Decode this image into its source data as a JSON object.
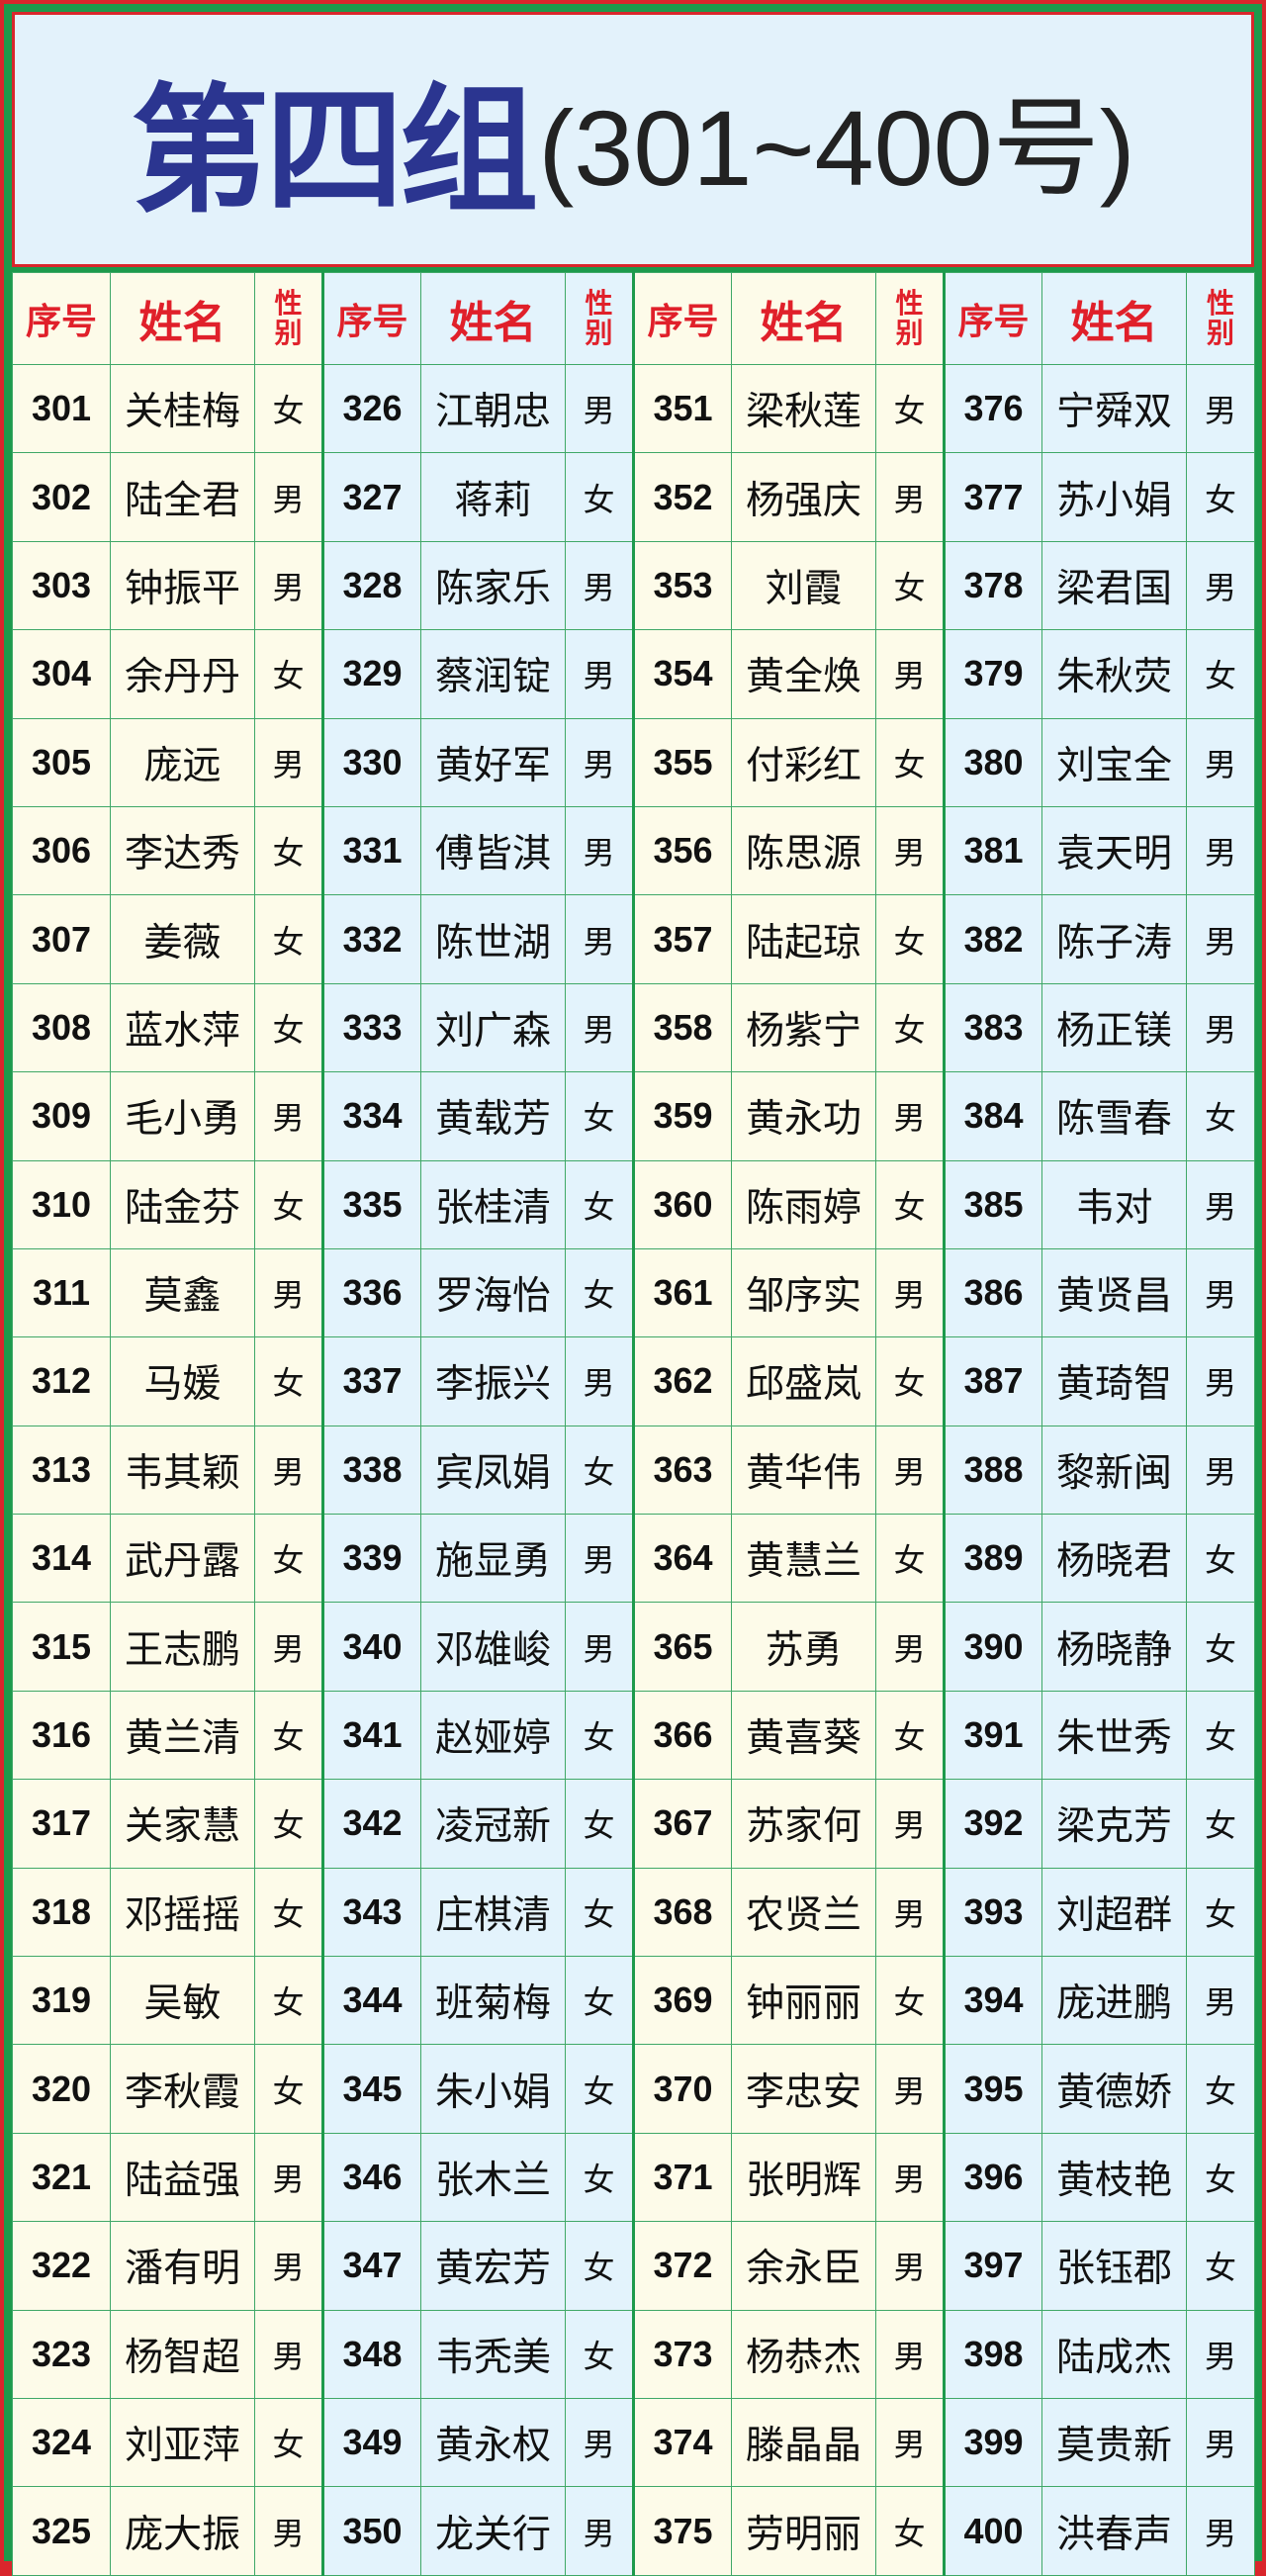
{
  "title": {
    "main": "第四组",
    "sub": "(301~400号)"
  },
  "colors": {
    "title_blue": "#2b3590",
    "header_red": "#e0202a",
    "grid_green": "#3fa867",
    "frame_red": "#d9262c",
    "cream": "#fdfbe9",
    "light_blue": "#e3f3fc"
  },
  "headers": {
    "seq": "序号",
    "name": "姓名",
    "sex_1": "性",
    "sex_2": "别"
  },
  "groups": [
    [
      [
        "301",
        "关桂梅",
        "女"
      ],
      [
        "302",
        "陆全君",
        "男"
      ],
      [
        "303",
        "钟振平",
        "男"
      ],
      [
        "304",
        "余丹丹",
        "女"
      ],
      [
        "305",
        "庞远",
        "男"
      ],
      [
        "306",
        "李达秀",
        "女"
      ],
      [
        "307",
        "姜薇",
        "女"
      ],
      [
        "308",
        "蓝水萍",
        "女"
      ],
      [
        "309",
        "毛小勇",
        "男"
      ],
      [
        "310",
        "陆金芬",
        "女"
      ],
      [
        "311",
        "莫鑫",
        "男"
      ],
      [
        "312",
        "马媛",
        "女"
      ],
      [
        "313",
        "韦其颖",
        "男"
      ],
      [
        "314",
        "武丹露",
        "女"
      ],
      [
        "315",
        "王志鹏",
        "男"
      ],
      [
        "316",
        "黄兰清",
        "女"
      ],
      [
        "317",
        "关家慧",
        "女"
      ],
      [
        "318",
        "邓摇摇",
        "女"
      ],
      [
        "319",
        "吴敏",
        "女"
      ],
      [
        "320",
        "李秋霞",
        "女"
      ],
      [
        "321",
        "陆益强",
        "男"
      ],
      [
        "322",
        "潘有明",
        "男"
      ],
      [
        "323",
        "杨智超",
        "男"
      ],
      [
        "324",
        "刘亚萍",
        "女"
      ],
      [
        "325",
        "庞大振",
        "男"
      ]
    ],
    [
      [
        "326",
        "江朝忠",
        "男"
      ],
      [
        "327",
        "蒋莉",
        "女"
      ],
      [
        "328",
        "陈家乐",
        "男"
      ],
      [
        "329",
        "蔡润锭",
        "男"
      ],
      [
        "330",
        "黄好军",
        "男"
      ],
      [
        "331",
        "傅皆淇",
        "男"
      ],
      [
        "332",
        "陈世湖",
        "男"
      ],
      [
        "333",
        "刘广森",
        "男"
      ],
      [
        "334",
        "黄载芳",
        "女"
      ],
      [
        "335",
        "张桂清",
        "女"
      ],
      [
        "336",
        "罗海怡",
        "女"
      ],
      [
        "337",
        "李振兴",
        "男"
      ],
      [
        "338",
        "宾凤娟",
        "女"
      ],
      [
        "339",
        "施显勇",
        "男"
      ],
      [
        "340",
        "邓雄峻",
        "男"
      ],
      [
        "341",
        "赵娅婷",
        "女"
      ],
      [
        "342",
        "凌冠新",
        "女"
      ],
      [
        "343",
        "庄棋清",
        "女"
      ],
      [
        "344",
        "班菊梅",
        "女"
      ],
      [
        "345",
        "朱小娟",
        "女"
      ],
      [
        "346",
        "张木兰",
        "女"
      ],
      [
        "347",
        "黄宏芳",
        "女"
      ],
      [
        "348",
        "韦秃美",
        "女"
      ],
      [
        "349",
        "黄永权",
        "男"
      ],
      [
        "350",
        "龙关行",
        "男"
      ]
    ],
    [
      [
        "351",
        "梁秋莲",
        "女"
      ],
      [
        "352",
        "杨强庆",
        "男"
      ],
      [
        "353",
        "刘霞",
        "女"
      ],
      [
        "354",
        "黄全焕",
        "男"
      ],
      [
        "355",
        "付彩红",
        "女"
      ],
      [
        "356",
        "陈思源",
        "男"
      ],
      [
        "357",
        "陆起琼",
        "女"
      ],
      [
        "358",
        "杨紫宁",
        "女"
      ],
      [
        "359",
        "黄永功",
        "男"
      ],
      [
        "360",
        "陈雨婷",
        "女"
      ],
      [
        "361",
        "邹序实",
        "男"
      ],
      [
        "362",
        "邱盛岚",
        "女"
      ],
      [
        "363",
        "黄华伟",
        "男"
      ],
      [
        "364",
        "黄慧兰",
        "女"
      ],
      [
        "365",
        "苏勇",
        "男"
      ],
      [
        "366",
        "黄喜葵",
        "女"
      ],
      [
        "367",
        "苏家何",
        "男"
      ],
      [
        "368",
        "农贤兰",
        "男"
      ],
      [
        "369",
        "钟丽丽",
        "女"
      ],
      [
        "370",
        "李忠安",
        "男"
      ],
      [
        "371",
        "张明辉",
        "男"
      ],
      [
        "372",
        "余永臣",
        "男"
      ],
      [
        "373",
        "杨恭杰",
        "男"
      ],
      [
        "374",
        "滕晶晶",
        "男"
      ],
      [
        "375",
        "劳明丽",
        "女"
      ]
    ],
    [
      [
        "376",
        "宁舜双",
        "男"
      ],
      [
        "377",
        "苏小娟",
        "女"
      ],
      [
        "378",
        "梁君国",
        "男"
      ],
      [
        "379",
        "朱秋荧",
        "女"
      ],
      [
        "380",
        "刘宝全",
        "男"
      ],
      [
        "381",
        "袁天明",
        "男"
      ],
      [
        "382",
        "陈子涛",
        "男"
      ],
      [
        "383",
        "杨正镁",
        "男"
      ],
      [
        "384",
        "陈雪春",
        "女"
      ],
      [
        "385",
        "韦对",
        "男"
      ],
      [
        "386",
        "黄贤昌",
        "男"
      ],
      [
        "387",
        "黄琦智",
        "男"
      ],
      [
        "388",
        "黎新闽",
        "男"
      ],
      [
        "389",
        "杨晓君",
        "女"
      ],
      [
        "390",
        "杨晓静",
        "女"
      ],
      [
        "391",
        "朱世秀",
        "女"
      ],
      [
        "392",
        "梁克芳",
        "女"
      ],
      [
        "393",
        "刘超群",
        "女"
      ],
      [
        "394",
        "庞进鹏",
        "男"
      ],
      [
        "395",
        "黄德娇",
        "女"
      ],
      [
        "396",
        "黄枝艳",
        "女"
      ],
      [
        "397",
        "张钰郡",
        "女"
      ],
      [
        "398",
        "陆成杰",
        "男"
      ],
      [
        "399",
        "莫贵新",
        "男"
      ],
      [
        "400",
        "洪春声",
        "男"
      ]
    ]
  ]
}
